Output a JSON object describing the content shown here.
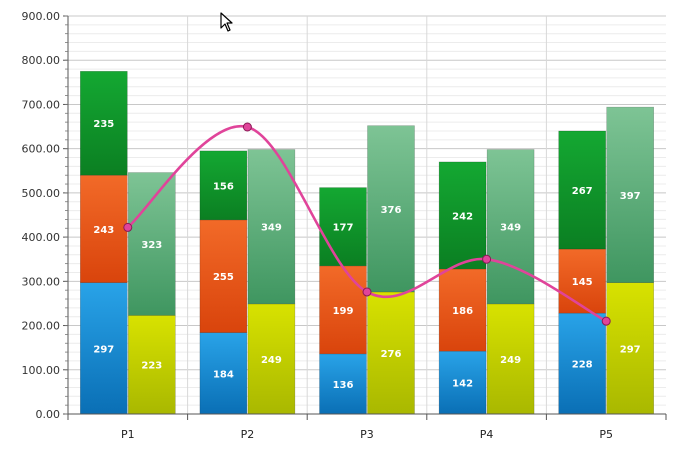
{
  "chart_data": {
    "type": "bar",
    "stacked": true,
    "categories": [
      "P1",
      "P2",
      "P3",
      "P4",
      "P5"
    ],
    "stacks": [
      {
        "series": [
          {
            "values": [
              297,
              184,
              136,
              142,
              228
            ],
            "color": "#1a8fd6"
          },
          {
            "values": [
              243,
              255,
              199,
              186,
              145
            ],
            "color": "#ee5a1e"
          },
          {
            "values": [
              235,
              156,
              177,
              242,
              267
            ],
            "color": "#1aa63a"
          }
        ]
      },
      {
        "series": [
          {
            "values": [
              223,
              249,
              276,
              249,
              297
            ],
            "color": "#c8d400"
          },
          {
            "values": [
              323,
              349,
              376,
              349,
              397
            ],
            "color": "#5fb47a"
          }
        ]
      }
    ],
    "line": {
      "type": "spline",
      "values": [
        422,
        649,
        276,
        350,
        210
      ],
      "color": "#e0449a"
    },
    "ylim": [
      0,
      900
    ],
    "yticks": [
      "0.00",
      "100.00",
      "200.00",
      "300.00",
      "400.00",
      "500.00",
      "600.00",
      "700.00",
      "800.00",
      "900.00"
    ],
    "ystep": 100,
    "grid": true,
    "legend": "none"
  },
  "cursor": {
    "icon": "mouse-pointer-icon"
  }
}
